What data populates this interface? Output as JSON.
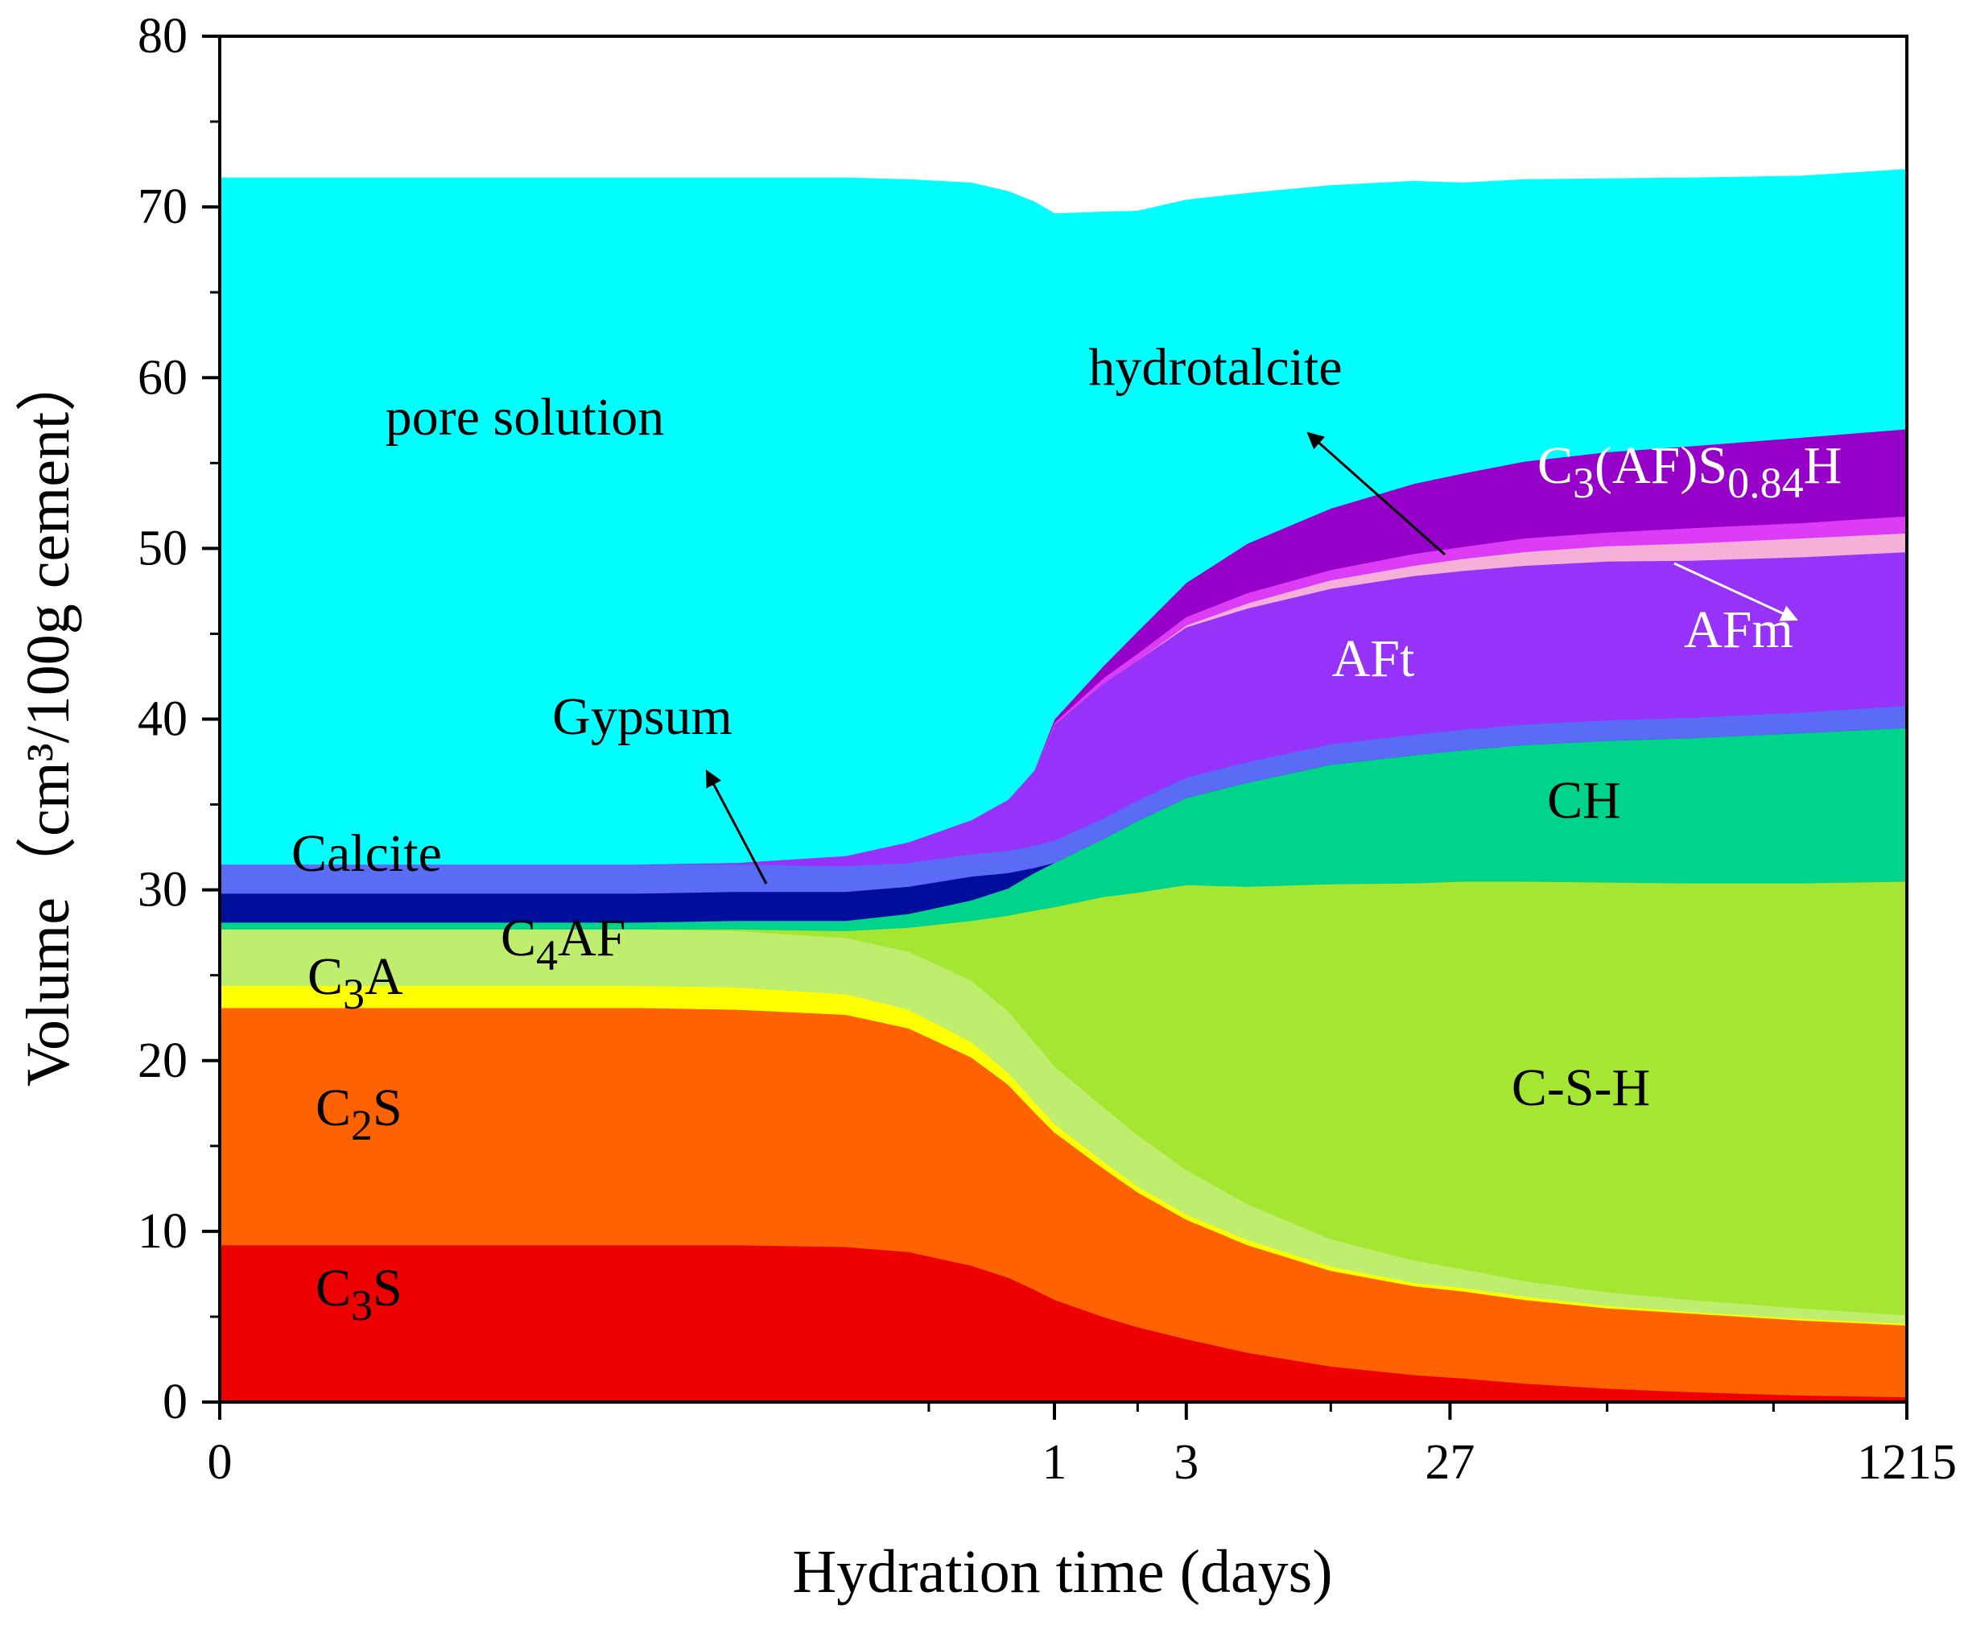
{
  "chart_data": {
    "type": "area",
    "stacked": true,
    "xlabel": "Hydration time (days)",
    "ylabel": "Volume（cm³/100g cement）",
    "ylim": [
      0,
      80
    ],
    "yticks": [
      0,
      10,
      20,
      30,
      40,
      50,
      60,
      70,
      80
    ],
    "x_scale": "log (time in days, 0 shown at origin)",
    "xticks": [
      {
        "label": "0",
        "value": 0
      },
      {
        "label": "1",
        "value": 1
      },
      {
        "label": "3",
        "value": 3
      },
      {
        "label": "27",
        "value": 27
      },
      {
        "label": "1215",
        "value": 1215
      }
    ],
    "x": [
      0,
      0.0001,
      0.001,
      0.01,
      0.03,
      0.1,
      0.2,
      0.4,
      0.6,
      0.8,
      1,
      1.5,
      2,
      3,
      5,
      10,
      20,
      30,
      50,
      100,
      200,
      500,
      1215
    ],
    "series": [
      {
        "name": "C3S",
        "color": "#ef0000",
        "values": [
          9.2,
          9.2,
          9.2,
          9.2,
          9.2,
          9.1,
          8.8,
          8.0,
          7.3,
          6.6,
          6.0,
          5.0,
          4.4,
          3.7,
          2.9,
          2.1,
          1.6,
          1.4,
          1.1,
          0.8,
          0.6,
          0.4,
          0.3
        ]
      },
      {
        "name": "C2S",
        "color": "#ff6200",
        "values": [
          13.9,
          13.9,
          13.9,
          13.9,
          13.8,
          13.6,
          13.1,
          12.2,
          11.3,
          10.4,
          9.8,
          8.7,
          7.9,
          7.0,
          6.3,
          5.6,
          5.2,
          5.1,
          4.9,
          4.7,
          4.6,
          4.4,
          4.2
        ]
      },
      {
        "name": "C3A",
        "color": "#ffff00",
        "values": [
          1.3,
          1.3,
          1.3,
          1.3,
          1.3,
          1.2,
          1.1,
          0.9,
          0.7,
          0.6,
          0.5,
          0.4,
          0.35,
          0.3,
          0.3,
          0.25,
          0.2,
          0.2,
          0.2,
          0.15,
          0.1,
          0.1,
          0.1
        ]
      },
      {
        "name": "C4AF",
        "color": "#bfee6e",
        "values": [
          3.3,
          3.3,
          3.3,
          3.3,
          3.3,
          3.3,
          3.4,
          3.6,
          3.6,
          3.5,
          3.4,
          3.2,
          3.0,
          2.6,
          2.1,
          1.6,
          1.3,
          1.1,
          0.9,
          0.8,
          0.7,
          0.6,
          0.5
        ]
      },
      {
        "name": "C-S-H",
        "color": "#a5e632",
        "values": [
          0.0,
          0.0,
          0.0,
          0.0,
          0.1,
          0.4,
          1.4,
          3.5,
          5.6,
          7.7,
          9.3,
          12.3,
          14.2,
          16.7,
          18.6,
          20.8,
          22.1,
          22.7,
          23.4,
          24.0,
          24.4,
          24.9,
          25.4
        ]
      },
      {
        "name": "CH",
        "color": "#00d38b",
        "values": [
          0.4,
          0.4,
          0.4,
          0.4,
          0.5,
          0.6,
          0.8,
          1.2,
          1.6,
          2.2,
          2.6,
          3.4,
          4.2,
          5.1,
          6.1,
          7.0,
          7.5,
          7.7,
          8.0,
          8.3,
          8.5,
          8.8,
          9.0
        ]
      },
      {
        "name": "Gypsum",
        "color": "#000f9b",
        "values": [
          1.7,
          1.7,
          1.7,
          1.7,
          1.7,
          1.7,
          1.6,
          1.4,
          0.9,
          0.3,
          0.0,
          0.0,
          0.0,
          0.0,
          0.0,
          0.0,
          0.0,
          0.0,
          0.0,
          0.0,
          0.0,
          0.0,
          0.0
        ]
      },
      {
        "name": "Calcite",
        "color": "#5a6bf5",
        "values": [
          1.7,
          1.7,
          1.7,
          1.7,
          1.6,
          1.5,
          1.4,
          1.3,
          1.3,
          1.3,
          1.3,
          1.2,
          1.2,
          1.2,
          1.2,
          1.2,
          1.2,
          1.2,
          1.2,
          1.2,
          1.2,
          1.2,
          1.3
        ]
      },
      {
        "name": "AFt",
        "color": "#9632fa",
        "values": [
          0.0,
          0.0,
          0.0,
          0.0,
          0.1,
          0.6,
          1.2,
          2.0,
          3.0,
          4.4,
          6.8,
          7.9,
          8.2,
          8.8,
          9.0,
          9.1,
          9.3,
          9.3,
          9.3,
          9.3,
          9.2,
          9.1,
          9.0
        ]
      },
      {
        "name": "AFm",
        "color": "#f5b0d8",
        "values": [
          0.0,
          0.0,
          0.0,
          0.0,
          0.0,
          0.0,
          0.0,
          0.0,
          0.0,
          0.0,
          0.0,
          0.0,
          0.0,
          0.1,
          0.3,
          0.5,
          0.6,
          0.7,
          0.8,
          0.9,
          1.0,
          1.1,
          1.1
        ]
      },
      {
        "name": "hydrotalcite",
        "color": "#dc3cf5",
        "values": [
          0.0,
          0.0,
          0.0,
          0.0,
          0.0,
          0.0,
          0.0,
          0.0,
          0.0,
          0.0,
          0.1,
          0.3,
          0.4,
          0.5,
          0.6,
          0.6,
          0.7,
          0.7,
          0.8,
          0.8,
          0.9,
          0.9,
          1.0
        ]
      },
      {
        "name": "C3(AF)S0.84H",
        "color": "#9600c8",
        "values": [
          0.0,
          0.0,
          0.0,
          0.0,
          0.0,
          0.0,
          0.0,
          0.0,
          0.0,
          0.0,
          0.2,
          0.7,
          1.3,
          2.0,
          2.9,
          3.6,
          4.1,
          4.3,
          4.5,
          4.7,
          4.8,
          5.0,
          5.1
        ]
      },
      {
        "name": "pore solution",
        "color": "#00ffff",
        "values": [
          40.2,
          40.2,
          40.2,
          40.2,
          40.1,
          39.7,
          38.8,
          37.3,
          35.6,
          33.3,
          29.6,
          26.6,
          24.6,
          22.4,
          20.5,
          18.9,
          17.7,
          17.0,
          16.5,
          16.0,
          15.7,
          15.3,
          15.2
        ]
      }
    ],
    "labels": [
      {
        "key": "pore_solution",
        "text": "pore solution",
        "color": "#000000"
      },
      {
        "key": "hydrotalcite",
        "text": "hydrotalcite",
        "color": "#000000"
      },
      {
        "key": "c3afs",
        "text": "C",
        "sub1": "3",
        "mid": "(AF)S",
        "sub2": "0.84",
        "tail": "H",
        "color": "#ffffff"
      },
      {
        "key": "aft",
        "text": "AFt",
        "color": "#ffffff"
      },
      {
        "key": "afm",
        "text": "AFm",
        "color": "#ffffff"
      },
      {
        "key": "gypsum",
        "text": "Gypsum",
        "color": "#000000"
      },
      {
        "key": "calcite",
        "text": "Calcite",
        "color": "#000000"
      },
      {
        "key": "ch",
        "text": "CH",
        "color": "#000000"
      },
      {
        "key": "c4af",
        "text": "C",
        "sub1": "4",
        "tail": "AF",
        "color": "#000000"
      },
      {
        "key": "c3a",
        "text": "C",
        "sub1": "3",
        "tail": "A",
        "color": "#000000"
      },
      {
        "key": "csh",
        "text": "C-S-H",
        "color": "#000000"
      },
      {
        "key": "c2s",
        "text": "C",
        "sub1": "2",
        "tail": "S",
        "color": "#000000"
      },
      {
        "key": "c3s",
        "text": "C",
        "sub1": "3",
        "tail": "S",
        "color": "#000000"
      }
    ]
  }
}
